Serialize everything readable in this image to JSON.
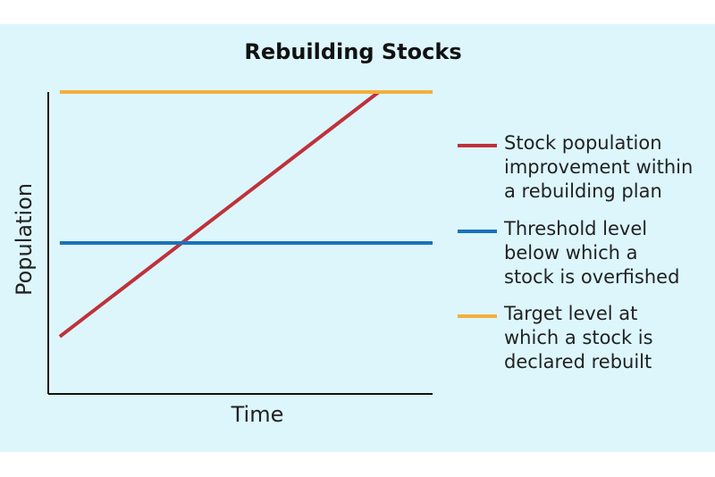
{
  "chart_data": {
    "type": "line",
    "title": "Rebuilding Stocks",
    "xlabel": "Time",
    "ylabel": "Population",
    "x_ticks_shown": false,
    "y_ticks_shown": false,
    "grid": false,
    "legend_position": "right",
    "series": [
      {
        "legend_lines": [
          "Stock population",
          "improvement within",
          "a rebuilding plan"
        ],
        "color": "#c0313a",
        "style": "rising line",
        "x": [
          0.03,
          0.86
        ],
        "y": [
          0.19,
          1.0
        ]
      },
      {
        "legend_lines": [
          "Threshold level",
          "below which a",
          "stock is overfished"
        ],
        "color": "#1a72bd",
        "style": "horizontal line",
        "x": [
          0.03,
          1.0
        ],
        "y": [
          0.5,
          0.5
        ]
      },
      {
        "legend_lines": [
          "Target level at",
          "which a stock is",
          "declared rebuilt"
        ],
        "color": "#f4ae3d",
        "style": "horizontal line",
        "x": [
          0.03,
          1.0
        ],
        "y": [
          1.0,
          1.0
        ]
      }
    ]
  }
}
